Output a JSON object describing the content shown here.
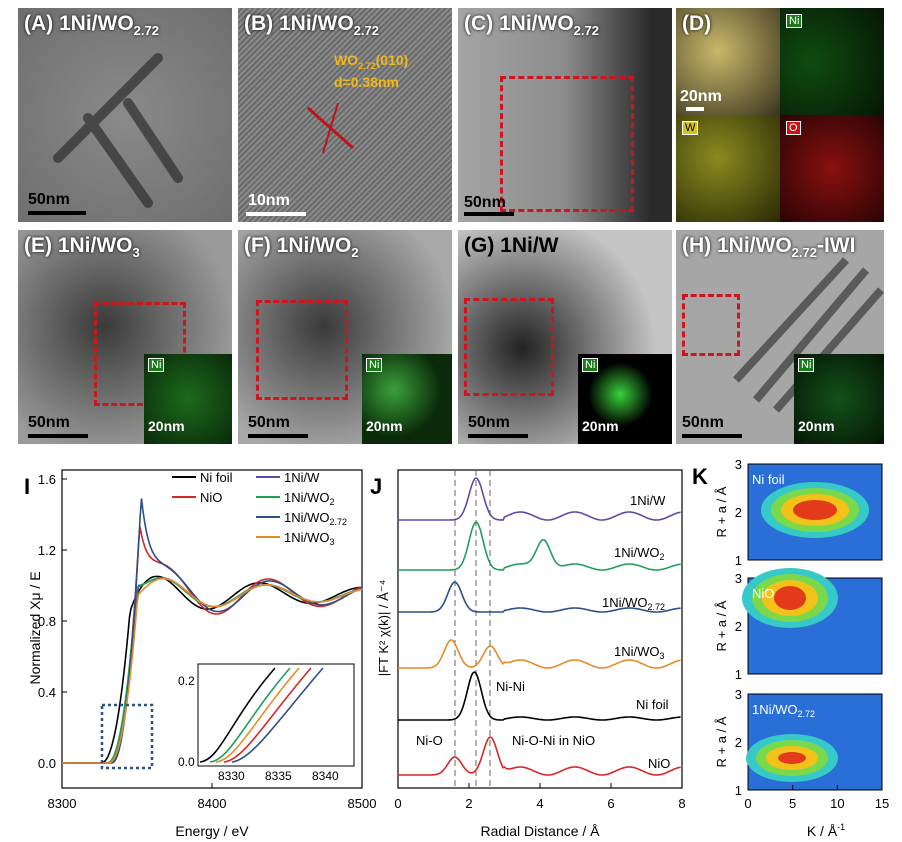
{
  "panels": {
    "A": {
      "label_main": "(A) 1Ni/WO",
      "label_sub": "2.72",
      "scale": "50nm"
    },
    "B": {
      "label_main": "(B) 1Ni/WO",
      "label_sub": "2.72",
      "scale": "10nm",
      "annot_main": "WO",
      "annot_sub": "2.72",
      "annot_rest": "(010)",
      "annot_d": "d=0.38nm"
    },
    "C": {
      "label_main": "(C) 1Ni/WO",
      "label_sub": "2.72",
      "scale": "50nm"
    },
    "D": {
      "label": "(D)",
      "scale": "20nm",
      "tag_ni": "Ni",
      "tag_w": "W",
      "tag_o": "O"
    },
    "E": {
      "label_main": "(E) 1Ni/WO",
      "label_sub": "3",
      "scale": "50nm",
      "inset_tag": "Ni",
      "inset_scale": "20nm"
    },
    "F": {
      "label_main": "(F) 1Ni/WO",
      "label_sub": "2",
      "scale": "50nm",
      "inset_tag": "Ni",
      "inset_scale": "20nm"
    },
    "G": {
      "label_main": "(G) 1Ni/W",
      "scale": "50nm",
      "inset_tag": "Ni",
      "inset_scale": "20nm"
    },
    "H": {
      "label_main": "(H) 1Ni/WO",
      "label_sub": "2.72",
      "label_rest": "-IWI",
      "scale": "50nm",
      "inset_tag": "Ni",
      "inset_scale": "20nm"
    }
  },
  "chart_data": [
    {
      "type": "line",
      "panel_label": "I",
      "xlabel": "Energy / eV",
      "ylabel": "Normalized Xμ / E",
      "xlim": [
        8300,
        8500
      ],
      "ylim": [
        -0.1,
        1.7
      ],
      "xticks": [
        "8300",
        "8400",
        "8500"
      ],
      "yticks": [
        "0.0",
        "0.4",
        "0.8",
        "1.2",
        "1.6"
      ],
      "legend": [
        {
          "name": "Ni foil",
          "color": "#000000"
        },
        {
          "name": "NiO",
          "color": "#d62728"
        },
        {
          "name": "1Ni/W",
          "color": "#5b4ba8"
        },
        {
          "name": "1Ni/WO2",
          "color": "#1fa05a"
        },
        {
          "name": "1Ni/WO2.72",
          "color": "#2b4f8a"
        },
        {
          "name": "1Ni/WO3",
          "color": "#e8892a"
        }
      ],
      "inset": {
        "xticks": [
          "8330",
          "8335",
          "8340"
        ],
        "yticks": [
          "0.0",
          "0.2"
        ]
      }
    },
    {
      "type": "line",
      "panel_label": "J",
      "xlabel": "Radial Distance / Å",
      "ylabel": "|FT K² χ(k)| / Å⁻⁴",
      "xlim": [
        0,
        8
      ],
      "xticks": [
        "0",
        "2",
        "4",
        "6",
        "8"
      ],
      "series_labels": [
        "1Ni/W",
        "1Ni/WO2",
        "1Ni/WO2.72",
        "1Ni/WO3",
        "Ni foil",
        "NiO"
      ],
      "annotations": [
        "Ni-Ni",
        "Ni-O",
        "Ni-O-Ni in NiO"
      ]
    },
    {
      "type": "heatmap",
      "panel_label": "K",
      "xlabel": "K / Å⁻¹",
      "ylabel": "R + a / Å",
      "xticks": [
        "0",
        "5",
        "10",
        "15"
      ],
      "yticks": [
        "1",
        "2",
        "3"
      ],
      "maps": [
        "Ni foil",
        "NiO",
        "1Ni/WO2.72"
      ]
    }
  ],
  "text": {
    "I_label": "I",
    "J_label": "J",
    "K_label": "K",
    "I_xlabel": "Energy / eV",
    "I_ylabel": "Normalized Xμ / E",
    "J_xlabel": "Radial Distance / Å",
    "K_xlabel_main": "K / Å",
    "K_xlabel_sup": "-1",
    "K_ylabel": "R + a / Å",
    "leg_nifoil": "Ni foil",
    "leg_nio": "NiO",
    "leg_niw": "1Ni/W",
    "leg_wo2_main": "1Ni/WO",
    "leg_wo2_sub": "2",
    "leg_wo272_main": "1Ni/WO",
    "leg_wo272_sub": "2.72",
    "leg_wo3_main": "1Ni/WO",
    "leg_wo3_sub": "3",
    "J_s1": "1Ni/W",
    "J_s2_main": "1Ni/WO",
    "J_s2_sub": "2",
    "J_s3_main": "1Ni/WO",
    "J_s3_sub": "2.72",
    "J_s4_main": "1Ni/WO",
    "J_s4_sub": "3",
    "J_s5": "Ni foil",
    "J_s6": "NiO",
    "J_a1": "Ni-Ni",
    "J_a2": "Ni-O",
    "J_a3": "Ni-O-Ni in NiO",
    "K_m1": "Ni foil",
    "K_m2": "NiO",
    "K_m3_main": "1Ni/WO",
    "K_m3_sub": "2.72"
  }
}
